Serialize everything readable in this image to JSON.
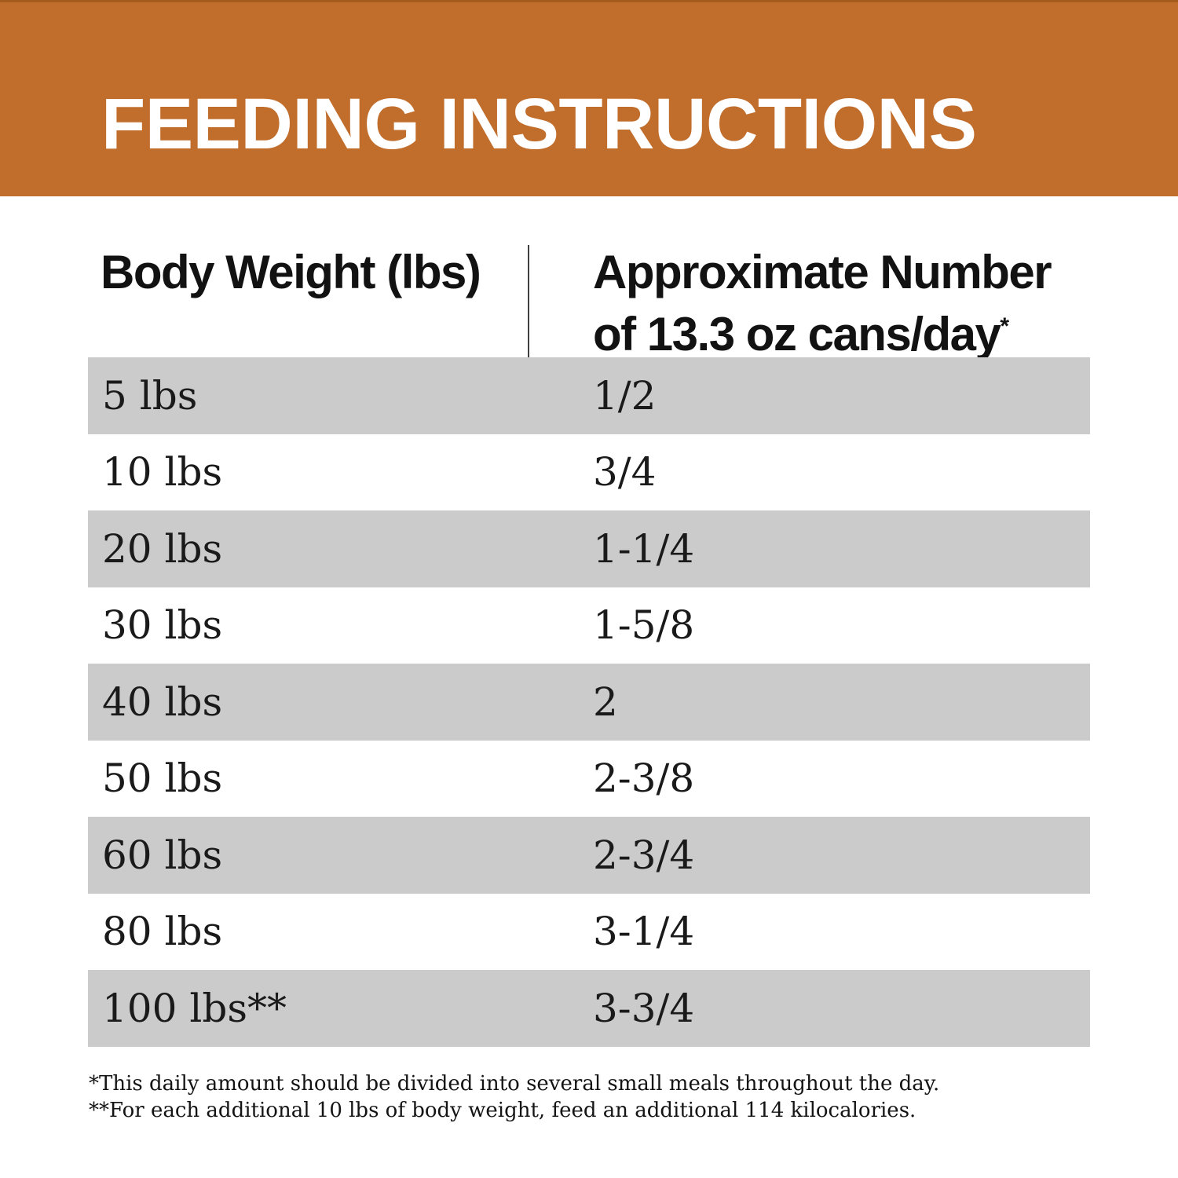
{
  "banner": {
    "title": "FEEDING INSTRUCTIONS",
    "bg_color": "#c16d2c",
    "text_color": "#ffffff"
  },
  "table": {
    "col1_header": "Body Weight (lbs)",
    "col2_header_line1": "Approximate Number",
    "col2_header_line2": "of 13.3 oz cans/day",
    "col2_header_note_marker": "*",
    "stripe_color": "#cbcbcb",
    "rows": [
      {
        "weight": "5 lbs",
        "cans": "1/2"
      },
      {
        "weight": "10 lbs",
        "cans": "3/4"
      },
      {
        "weight": "20 lbs",
        "cans": "1-1/4"
      },
      {
        "weight": "30 lbs",
        "cans": "1-5/8"
      },
      {
        "weight": "40 lbs",
        "cans": "2"
      },
      {
        "weight": "50 lbs",
        "cans": "2-3/8"
      },
      {
        "weight": "60 lbs",
        "cans": "2-3/4"
      },
      {
        "weight": "80 lbs",
        "cans": "3-1/4"
      },
      {
        "weight": "100 lbs**",
        "cans": "3-3/4"
      }
    ]
  },
  "footnotes": {
    "note1": "*This daily amount should be divided into several small meals throughout the day.",
    "note2": "**For each additional 10 lbs of body weight, feed an additional 114 kilocalories."
  },
  "chart_data": {
    "type": "table",
    "title": "FEEDING INSTRUCTIONS",
    "columns": [
      "Body Weight (lbs)",
      "Approximate Number of 13.3 oz cans/day*"
    ],
    "rows": [
      [
        "5 lbs",
        "1/2"
      ],
      [
        "10 lbs",
        "3/4"
      ],
      [
        "20 lbs",
        "1-1/4"
      ],
      [
        "30 lbs",
        "1-5/8"
      ],
      [
        "40 lbs",
        "2"
      ],
      [
        "50 lbs",
        "2-3/8"
      ],
      [
        "60 lbs",
        "2-3/4"
      ],
      [
        "80 lbs",
        "3-1/4"
      ],
      [
        "100 lbs**",
        "3-3/4"
      ]
    ],
    "footnotes": [
      "*This daily amount should be divided into several small meals throughout the day.",
      "**For each additional 10 lbs of body weight, feed an additional 114 kilocalories."
    ],
    "layout_hints": {
      "striped_rows": "odd rows gray #cbcbcb starting with first data row",
      "column_divider": "thin vertical rule between columns",
      "header_banner_color": "#c16d2c"
    }
  }
}
